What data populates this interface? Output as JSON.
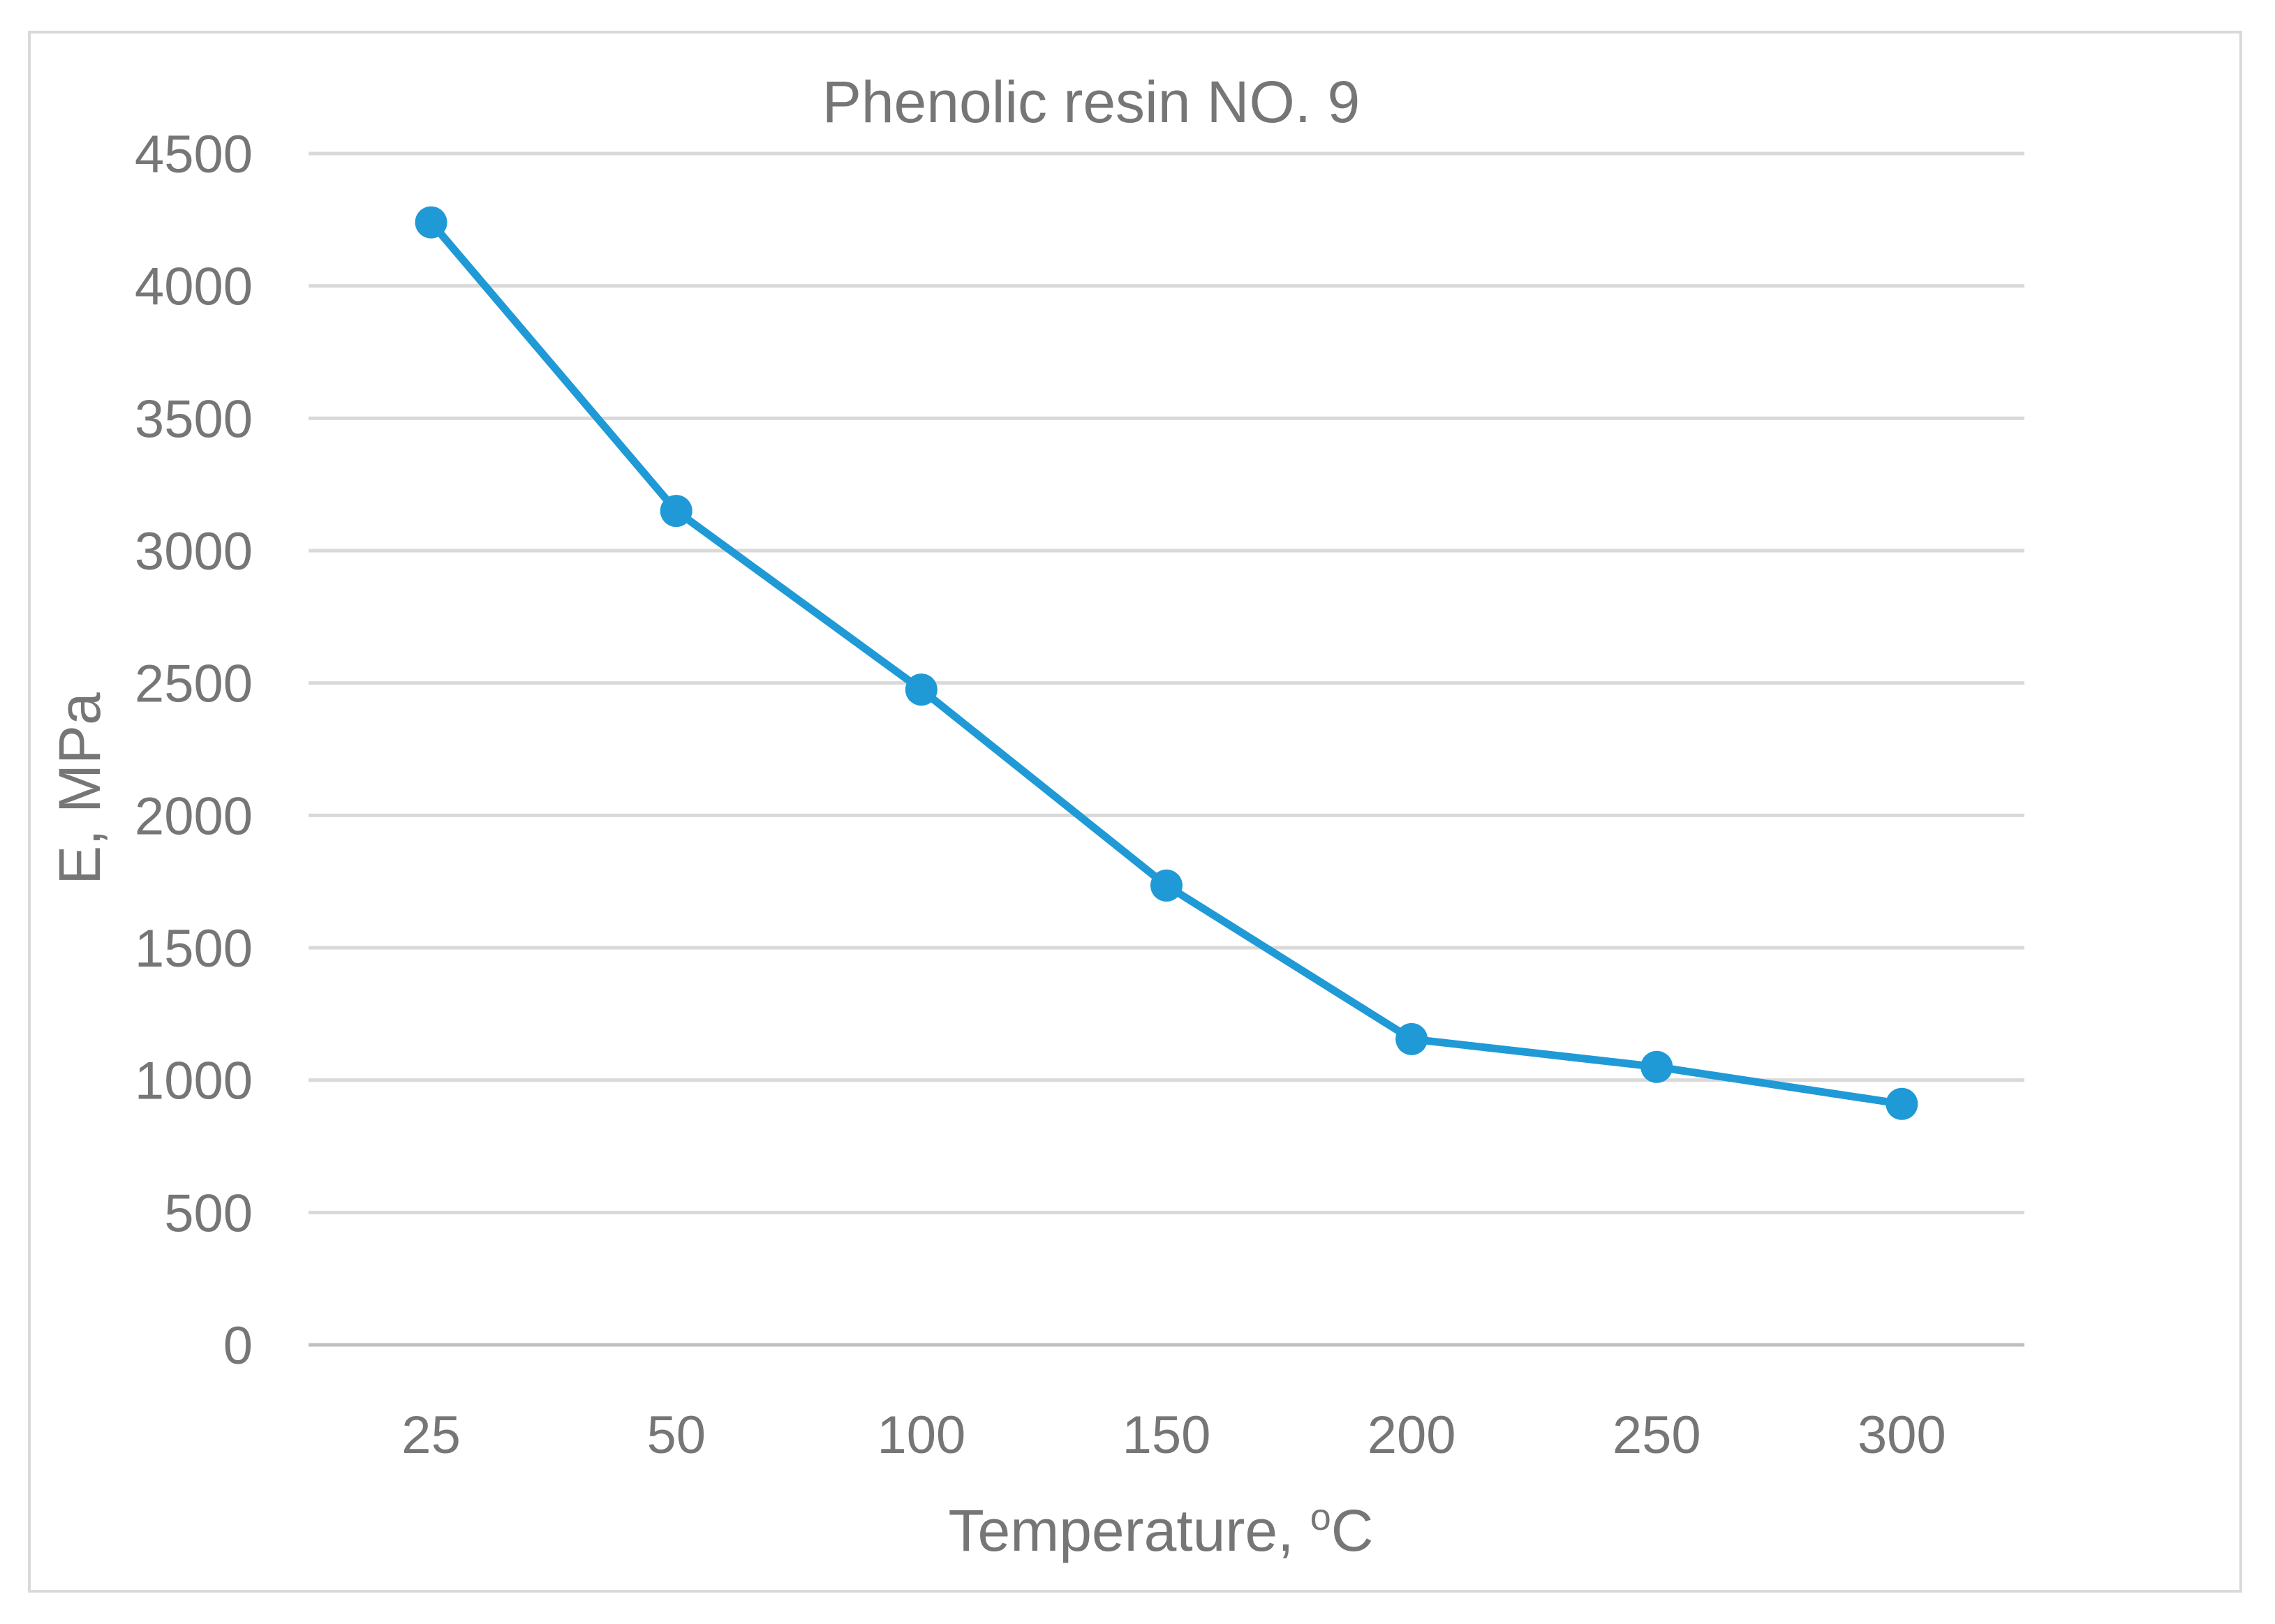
{
  "chart_data": {
    "type": "line",
    "title": "Phenolic resin NO. 9",
    "xlabel": "Temperature, ",
    "xlabel_superscript": "o",
    "xlabel_suffix": "C",
    "ylabel": "E, MPa",
    "categories": [
      "25",
      "50",
      "100",
      "150",
      "200",
      "250",
      "300"
    ],
    "series": [
      {
        "name": "E",
        "values": [
          4240,
          3150,
          2475,
          1735,
          1155,
          1050,
          910
        ]
      }
    ],
    "ylim": [
      0,
      4500
    ],
    "yticks": [
      0,
      500,
      1000,
      1500,
      2000,
      2500,
      3000,
      3500,
      4000,
      4500
    ],
    "grid": true,
    "legend": "none",
    "color": "#1f9ad6"
  }
}
